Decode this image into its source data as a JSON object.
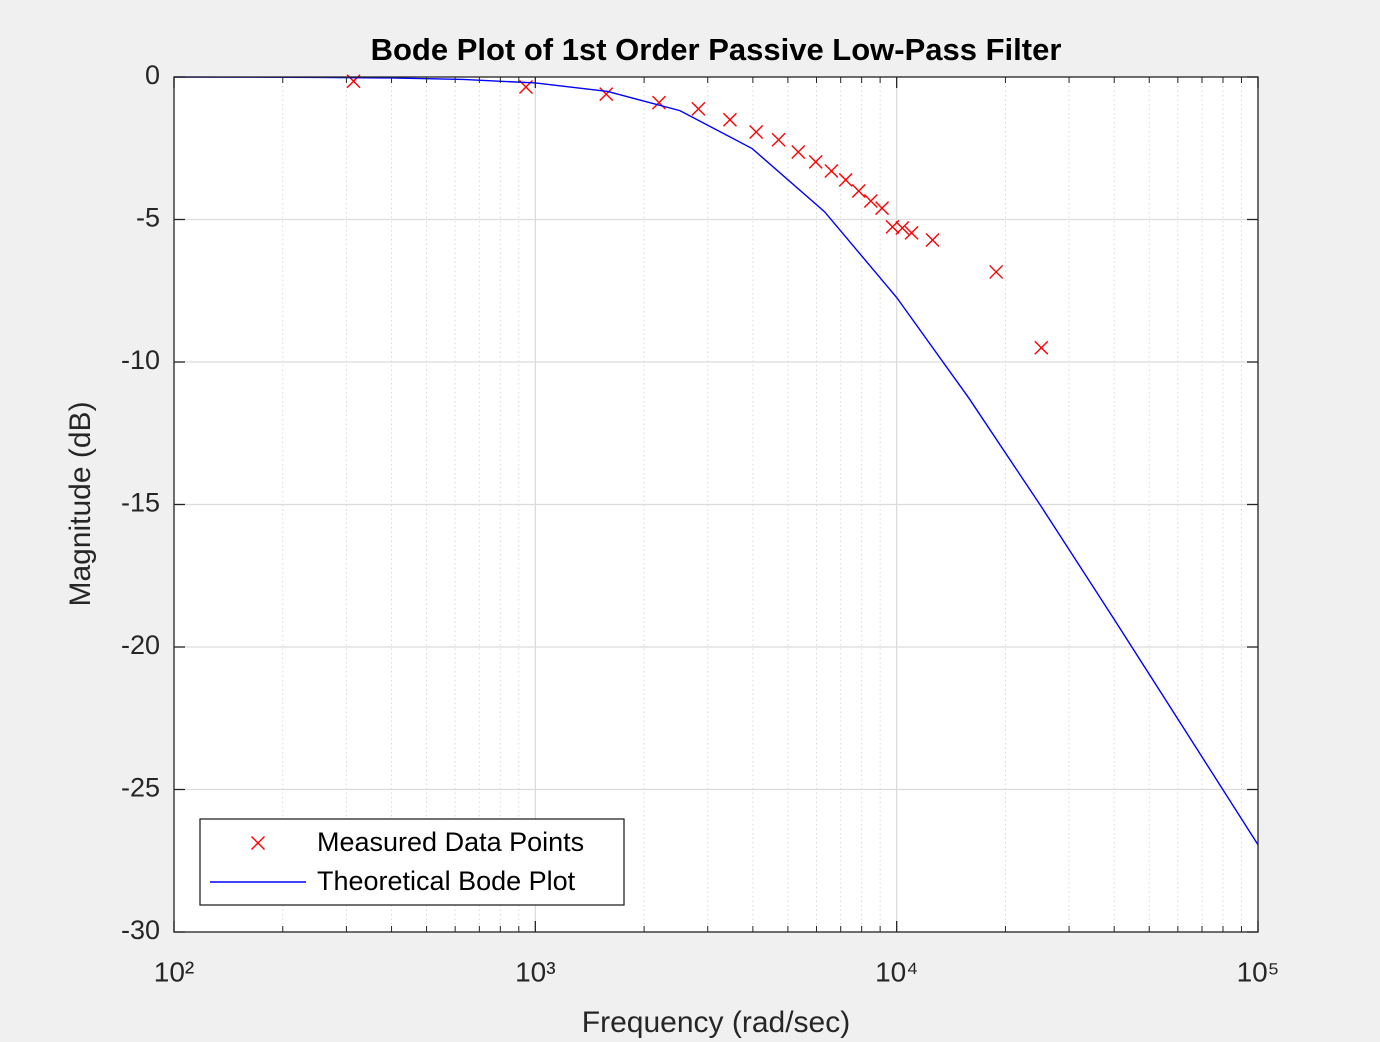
{
  "chart_data": {
    "type": "line",
    "title": "Bode Plot of 1st Order Passive Low-Pass Filter",
    "xlabel": "Frequency (rad/sec)",
    "ylabel": "Magnitude (dB)",
    "xscale": "log",
    "xlim": [
      100,
      100000
    ],
    "xticks": [
      {
        "value": 100,
        "label": "10²"
      },
      {
        "value": 1000,
        "label": "10³"
      },
      {
        "value": 10000,
        "label": "10⁴"
      },
      {
        "value": 100000,
        "label": "10⁵"
      }
    ],
    "xminorticks": [
      200,
      300,
      400,
      500,
      600,
      700,
      800,
      900,
      2000,
      3000,
      4000,
      5000,
      6000,
      7000,
      8000,
      9000,
      20000,
      30000,
      40000,
      50000,
      60000,
      70000,
      80000,
      90000
    ],
    "ylim": [
      -30,
      0
    ],
    "yticks": [
      -30,
      -25,
      -20,
      -15,
      -10,
      -5,
      0
    ],
    "grid": true,
    "legend": "lower left",
    "series": [
      {
        "name": "Measured Data Points",
        "color": "#ff0000",
        "marker": "x",
        "x": [
          314,
          942,
          1571,
          2199,
          2827,
          3456,
          4084,
          4712,
          5341,
          5969,
          6597,
          7226,
          7854,
          8482,
          9111,
          9739,
          10367,
          10996,
          12566,
          18850,
          25133
        ],
        "values": [
          -0.15,
          -0.35,
          -0.6,
          -0.9,
          -1.12,
          -1.5,
          -1.93,
          -2.2,
          -2.63,
          -2.98,
          -3.3,
          -3.61,
          -4.0,
          -4.35,
          -4.6,
          -5.26,
          -5.3,
          -5.47,
          -5.72,
          -6.84,
          -9.5
        ]
      },
      {
        "name": "Theoretical Bode Plot",
        "color": "#0000ff",
        "x": [
          100,
          158.5,
          251.2,
          398.1,
          631,
          1000,
          1585,
          2512,
          3981,
          6310,
          10000,
          15849,
          25119,
          39811,
          63096,
          100000
        ],
        "values": [
          -0.002,
          -0.005,
          -0.014,
          -0.034,
          -0.085,
          -0.209,
          -0.508,
          -1.179,
          -2.511,
          -4.722,
          -7.737,
          -11.27,
          -15.07,
          -18.99,
          -22.96,
          -26.94
        ]
      }
    ]
  }
}
